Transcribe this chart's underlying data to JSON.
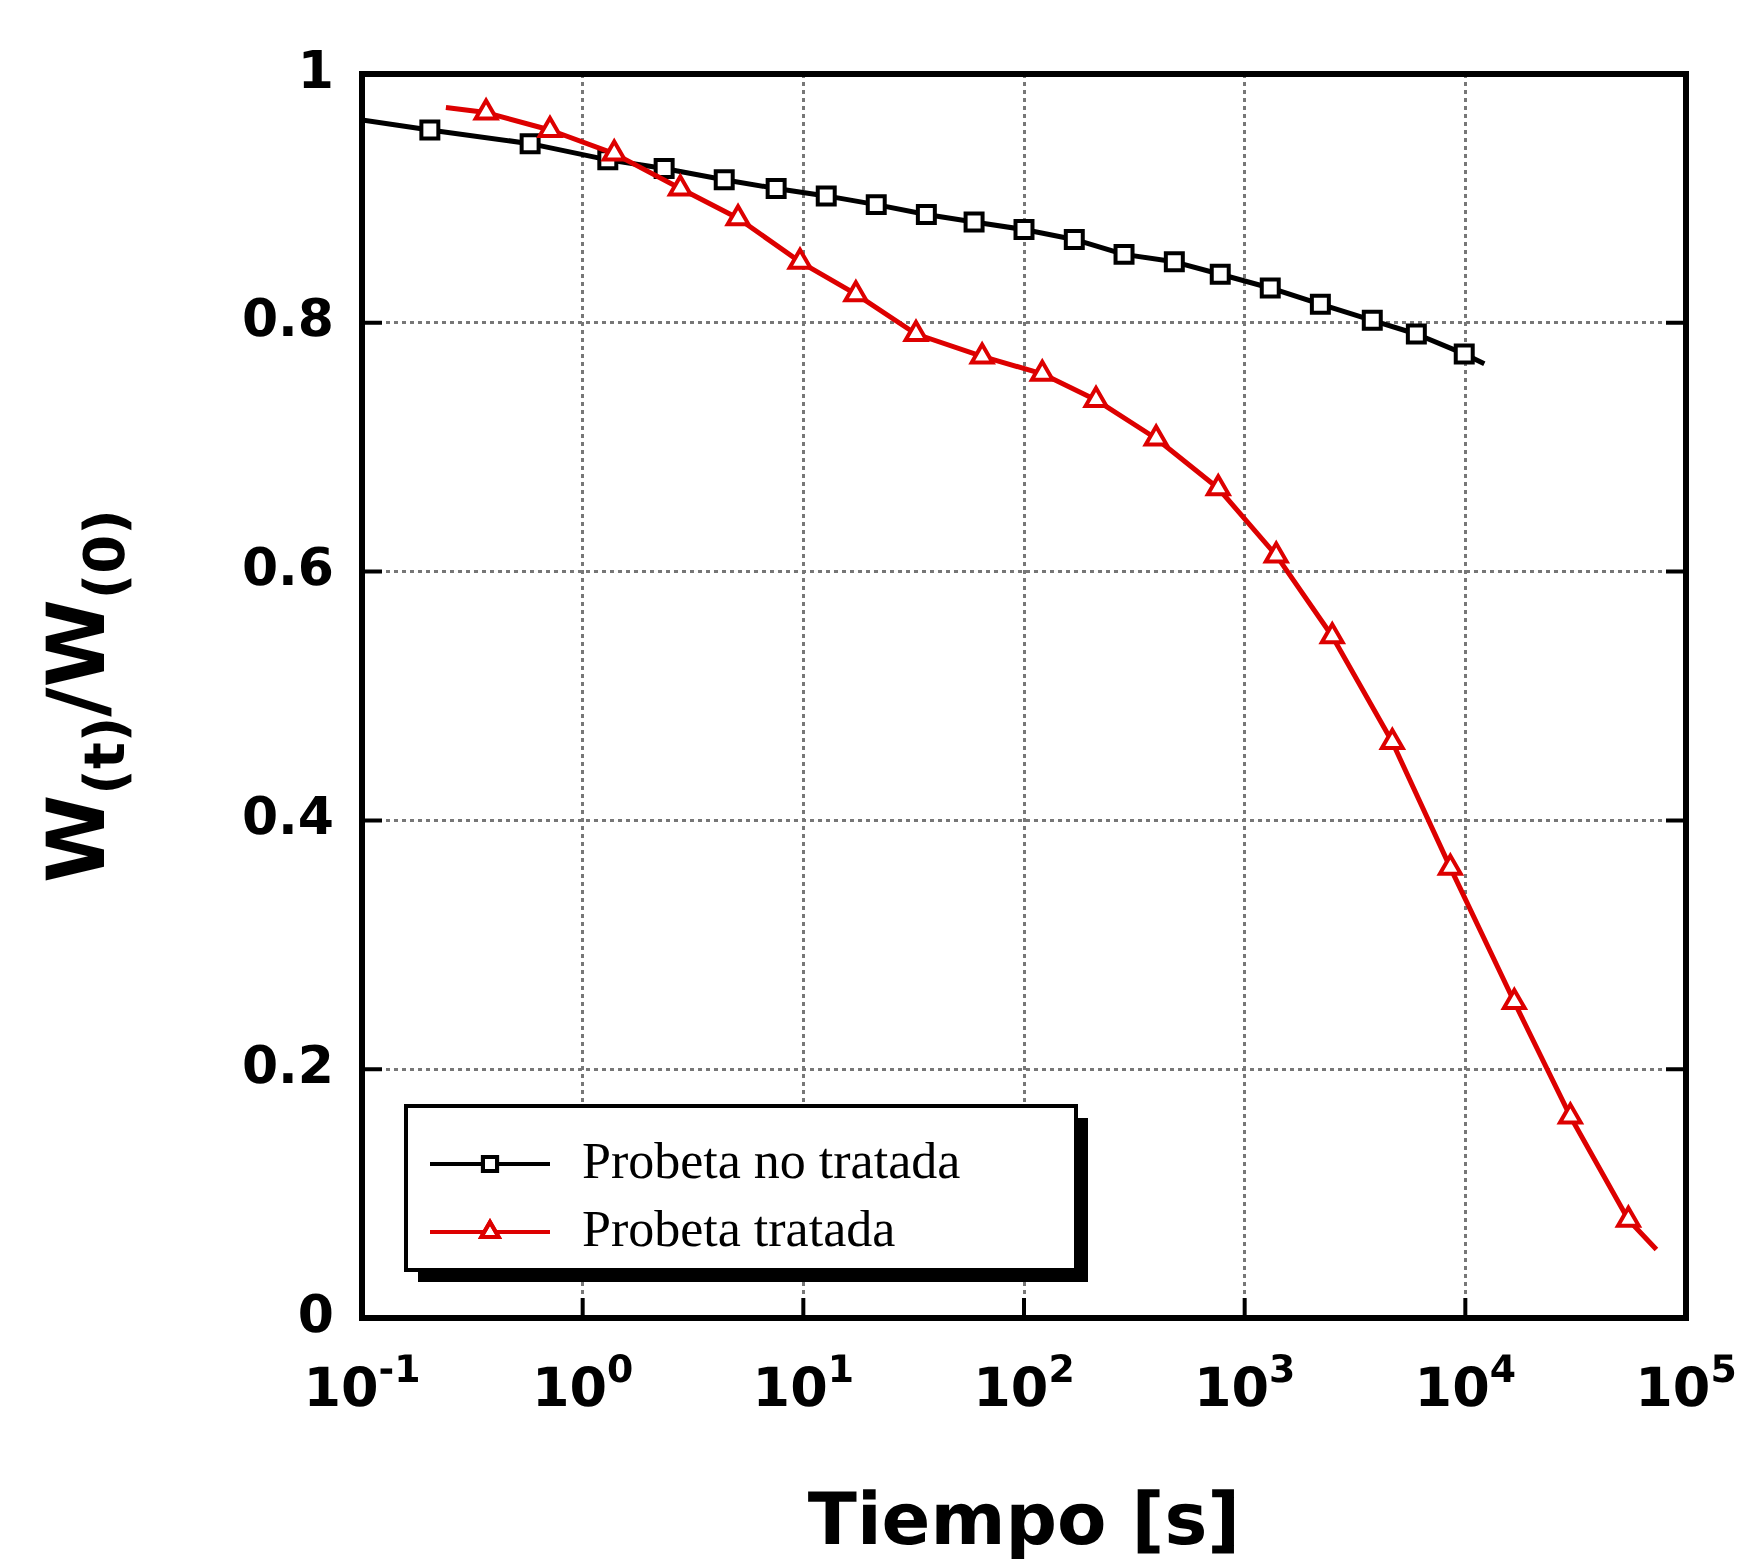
{
  "chart_data": {
    "type": "line",
    "xlabel": "Tiempo [s]",
    "ylabel": "W$_{(t)}$/W$_{(0)}$",
    "log": "x",
    "xlim": [
      0.1,
      100000
    ],
    "xticks": [
      {
        "value": 0.1,
        "label": "10$^{-1}$"
      },
      {
        "value": 1,
        "label": "10$^{0}$"
      },
      {
        "value": 10,
        "label": "10$^{1}$"
      },
      {
        "value": 100,
        "label": "10$^{2}$"
      },
      {
        "value": 1000,
        "label": "10$^{3}$"
      },
      {
        "value": 10000,
        "label": "10$^{4}$"
      },
      {
        "value": 100000,
        "label": "10$^{5}$"
      }
    ],
    "ylim": [
      0,
      1
    ],
    "yticks": [
      0,
      0.2,
      0.4,
      0.6,
      0.8,
      1
    ],
    "grid": true,
    "legend": "bottom left",
    "line_style": "solid",
    "series": [
      {
        "name": "Probeta no tratada",
        "color": "#000000",
        "marker": "square",
        "x": [
          0.1,
          0.203,
          0.578,
          1.3,
          2.34,
          4.38,
          7.53,
          12.7,
          21.4,
          36.1,
          59.4,
          100,
          169,
          284,
          480,
          775,
          1306,
          2203,
          3787,
          5998,
          9886,
          12190
        ],
        "values": [
          0.963,
          0.955,
          0.944,
          0.931,
          0.924,
          0.915,
          0.908,
          0.902,
          0.895,
          0.887,
          0.881,
          0.875,
          0.867,
          0.855,
          0.849,
          0.839,
          0.828,
          0.815,
          0.802,
          0.791,
          0.775,
          0.767
        ]
      },
      {
        "name": "Probeta tratada",
        "color": "#dd0000",
        "marker": "triangle",
        "x": [
          0.24,
          0.365,
          0.711,
          1.39,
          2.77,
          5.06,
          9.66,
          17.3,
          32.4,
          64.6,
          121,
          212,
          397,
          759,
          1390,
          2494,
          4667,
          8551,
          16670,
          29920,
          54810,
          73450
        ],
        "values": [
          0.973,
          0.969,
          0.955,
          0.936,
          0.908,
          0.884,
          0.849,
          0.823,
          0.791,
          0.773,
          0.759,
          0.738,
          0.707,
          0.667,
          0.613,
          0.548,
          0.463,
          0.362,
          0.254,
          0.162,
          0.079,
          0.055
        ]
      }
    ]
  }
}
